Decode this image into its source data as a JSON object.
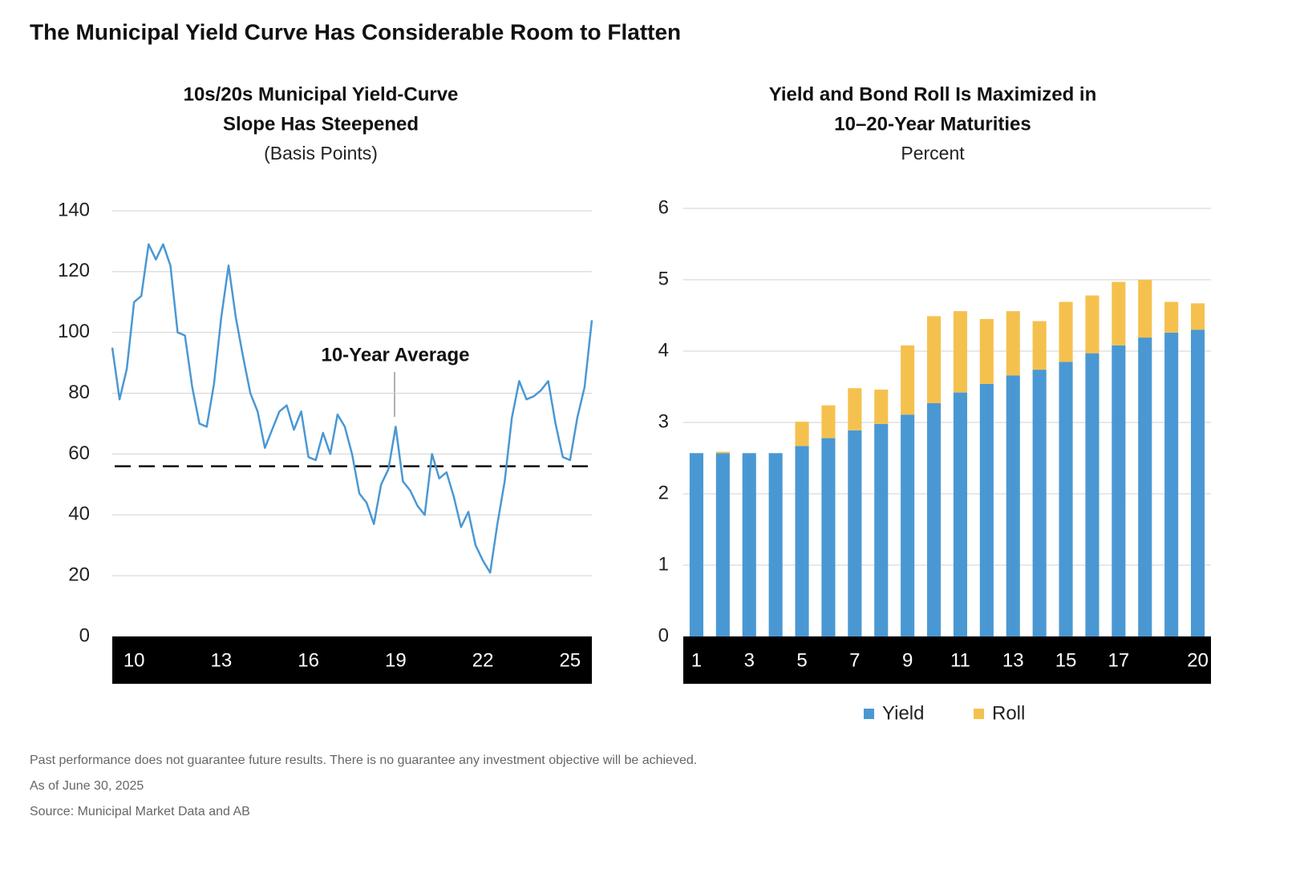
{
  "title": "The Municipal Yield Curve Has Considerable Room to Flatten",
  "chart_data": [
    {
      "type": "line",
      "title": [
        "10s/20s Municipal Yield-Curve",
        "Slope Has Steepened"
      ],
      "subtitle": "(Basis Points)",
      "x": [
        9.25,
        9.5,
        9.75,
        10,
        10.25,
        10.5,
        10.75,
        11,
        11.25,
        11.5,
        11.75,
        12,
        12.25,
        12.5,
        12.75,
        13,
        13.25,
        13.5,
        13.75,
        14,
        14.25,
        14.5,
        14.75,
        15,
        15.25,
        15.5,
        15.75,
        16,
        16.25,
        16.5,
        16.75,
        17,
        17.25,
        17.5,
        17.75,
        18,
        18.25,
        18.5,
        18.75,
        19,
        19.25,
        19.5,
        19.75,
        20,
        20.25,
        20.5,
        20.75,
        21,
        21.25,
        21.5,
        21.75,
        22,
        22.25,
        22.5,
        22.75,
        23,
        23.25,
        23.5,
        23.75,
        24,
        24.25,
        24.5,
        24.75,
        25,
        25.25,
        25.5,
        25.75
      ],
      "values": [
        95,
        78,
        88,
        110,
        112,
        129,
        124,
        129,
        122,
        100,
        99,
        82,
        70,
        69,
        83,
        105,
        122,
        105,
        92,
        80,
        74,
        62,
        68,
        74,
        76,
        68,
        74,
        59,
        58,
        67,
        60,
        73,
        69,
        60,
        47,
        44,
        37,
        50,
        55,
        69,
        51,
        48,
        43,
        40,
        60,
        52,
        54,
        46,
        36,
        41,
        30,
        25,
        21,
        37,
        51,
        72,
        84,
        78,
        79,
        81,
        84,
        70,
        59,
        58,
        72,
        82,
        104
      ],
      "color": "#4a98d3",
      "xlim": [
        9.25,
        25.75
      ],
      "xticks": [
        10,
        13,
        16,
        19,
        22,
        25
      ],
      "ylim": [
        0,
        140
      ],
      "yticks": [
        0,
        20,
        40,
        60,
        80,
        100,
        120,
        140
      ],
      "average": {
        "value": 56,
        "label": "10-Year Average"
      },
      "grid": true
    },
    {
      "type": "bar",
      "stacked": true,
      "title": [
        "Yield and Bond Roll Is Maximized in",
        "10–20-Year Maturities"
      ],
      "subtitle": "Percent",
      "categories": [
        "1",
        null,
        "3",
        null,
        "5",
        null,
        "7",
        null,
        "9",
        null,
        "11",
        null,
        "13",
        null,
        "15",
        null,
        "17",
        null,
        null,
        "20"
      ],
      "series": [
        {
          "name": "Yield",
          "color": "#4a98d3",
          "values": [
            2.57,
            2.57,
            2.57,
            2.57,
            2.67,
            2.78,
            2.89,
            2.98,
            3.11,
            3.27,
            3.42,
            3.54,
            3.66,
            3.74,
            3.85,
            3.97,
            4.08,
            4.19,
            4.26,
            4.3
          ]
        },
        {
          "name": "Roll",
          "color": "#f5c14e",
          "values": [
            0,
            0.02,
            0,
            0,
            0.34,
            0.46,
            0.59,
            0.48,
            0.97,
            1.22,
            1.14,
            0.91,
            0.9,
            0.68,
            0.84,
            0.81,
            0.89,
            0.81,
            0.43,
            0.37
          ]
        }
      ],
      "ylim": [
        0,
        6
      ],
      "yticks": [
        0,
        1,
        2,
        3,
        4,
        5,
        6
      ],
      "grid": true,
      "legend": "bottom"
    }
  ],
  "footnotes": [
    "Past performance does not guarantee future results. There is no guarantee any investment objective will be achieved.",
    "As of June 30, 2025",
    "Source: Municipal Market Data and AB"
  ]
}
